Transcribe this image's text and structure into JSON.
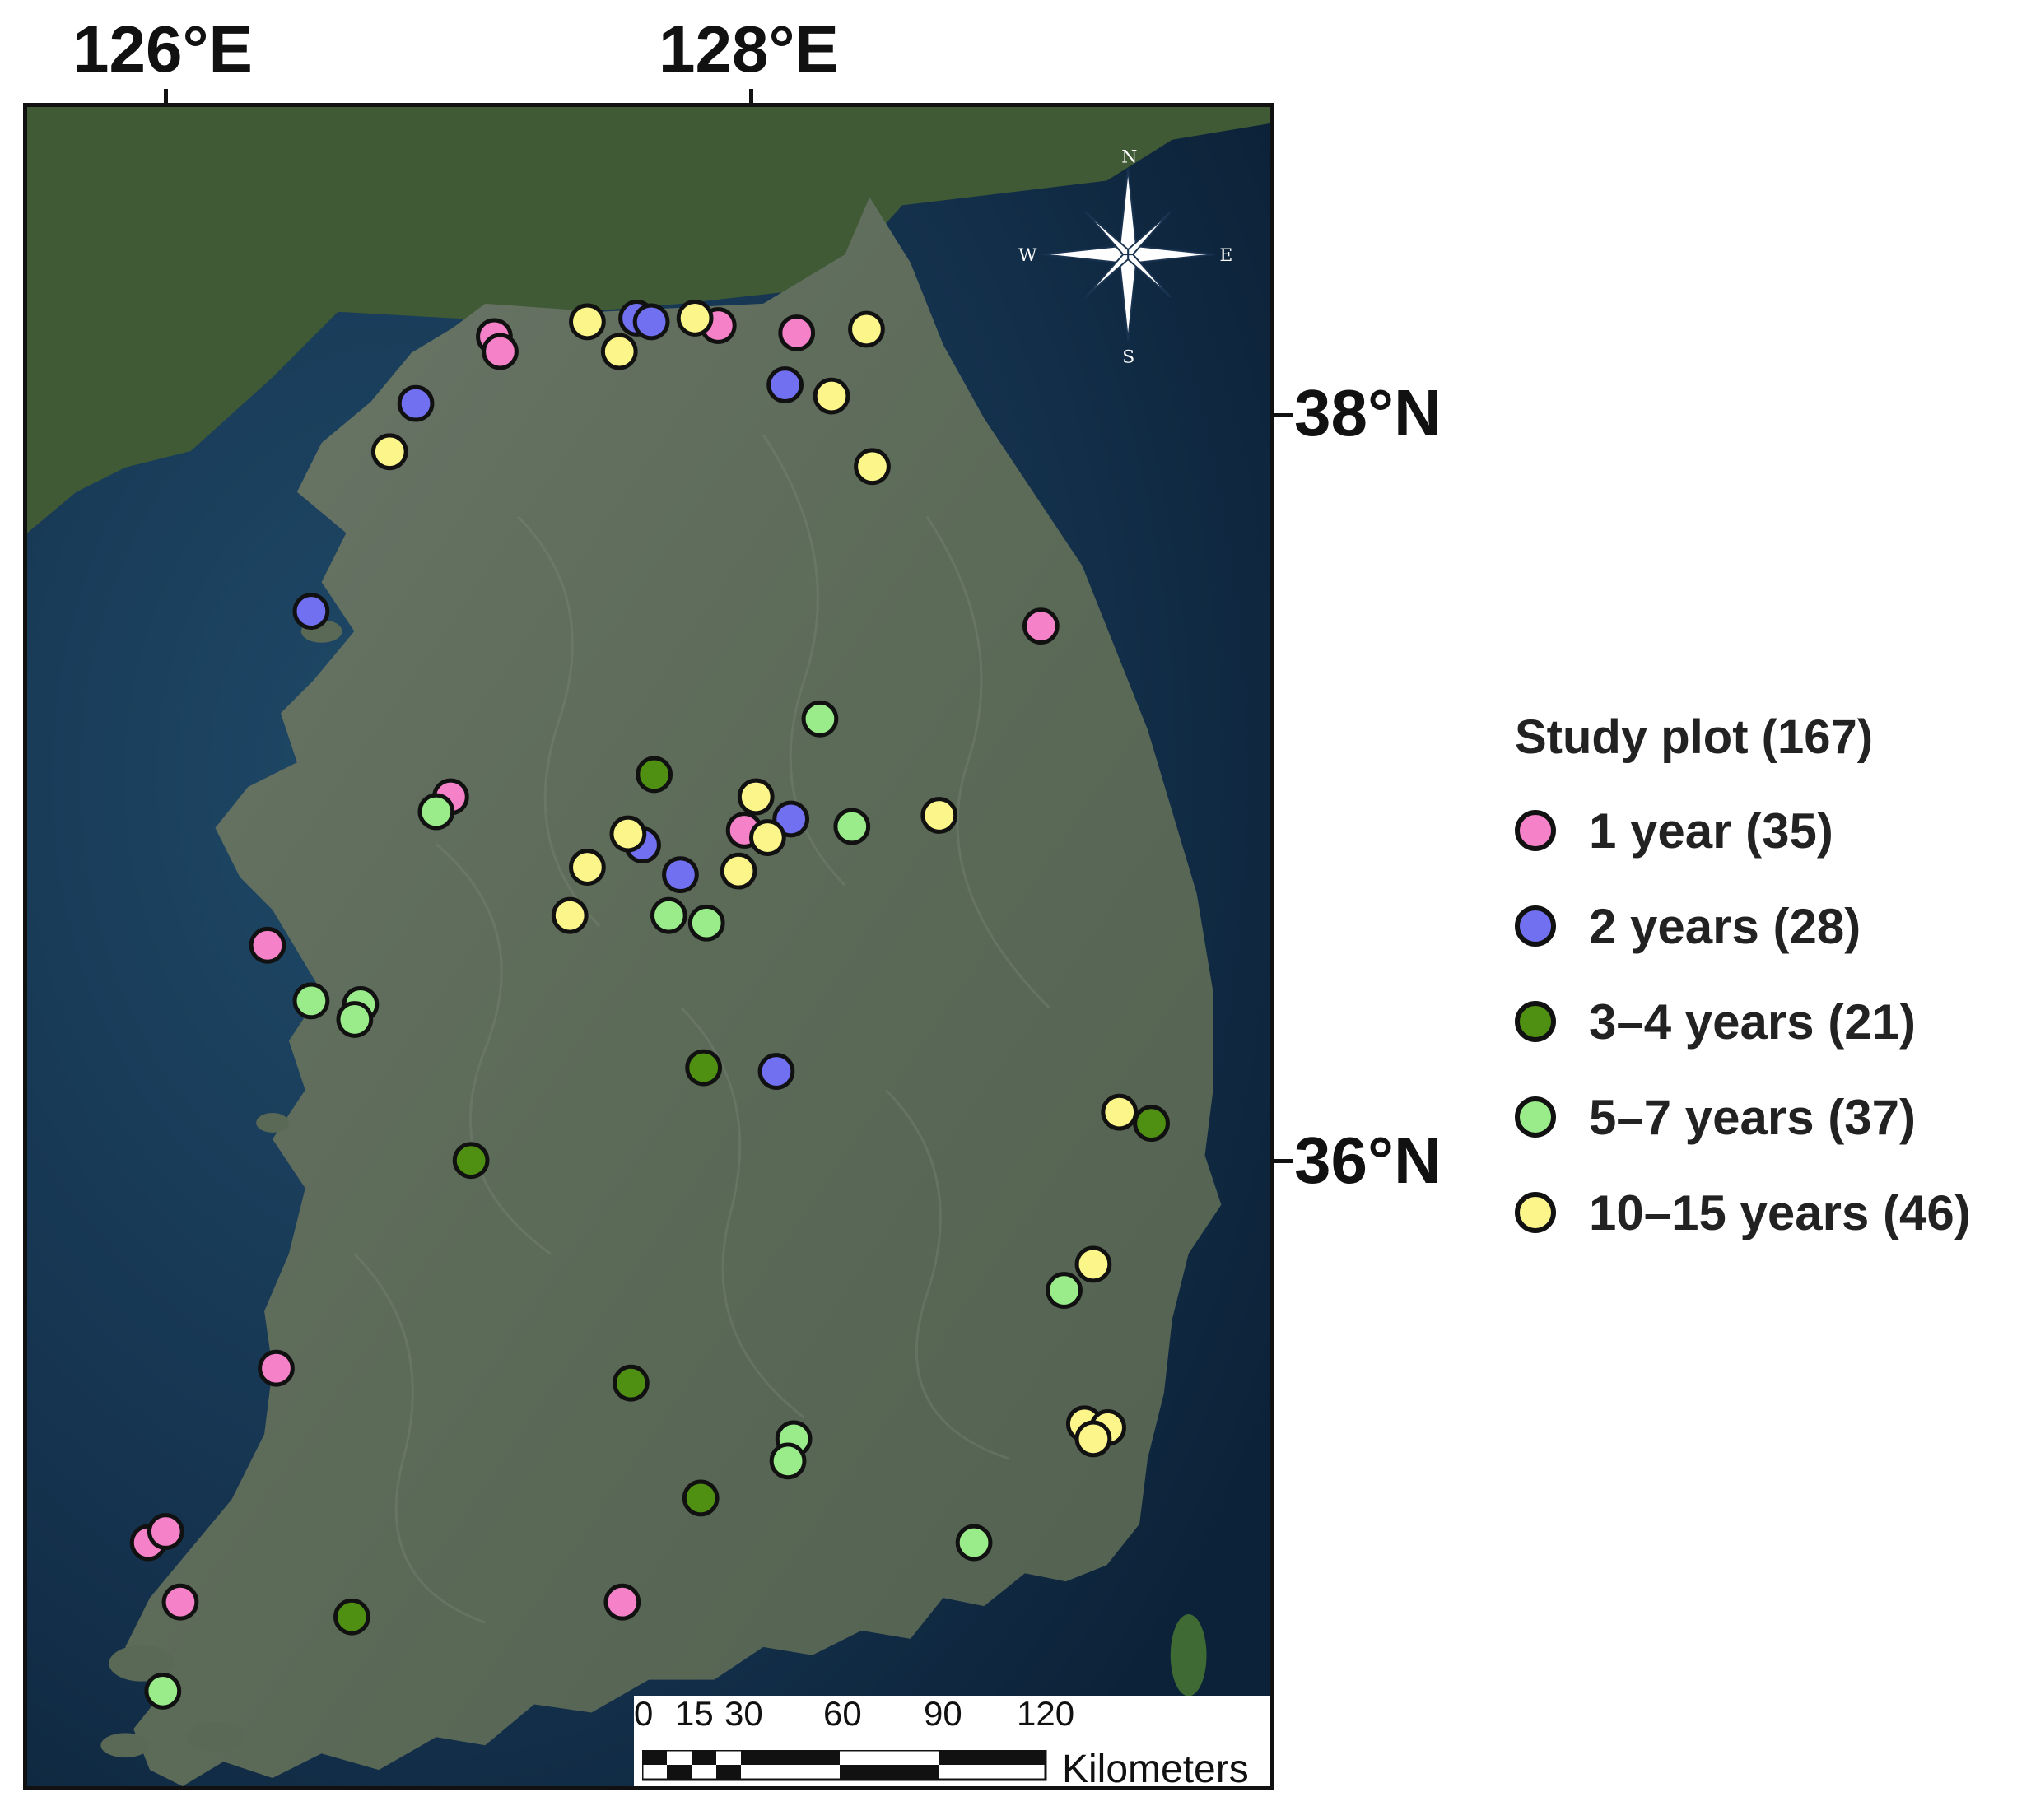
{
  "map": {
    "longitude_labels": [
      "126°E",
      "128°E"
    ],
    "latitude_labels": [
      "38°N",
      "36°N"
    ],
    "compass": {
      "n": "N",
      "s": "S",
      "e": "E",
      "w": "W"
    },
    "colors": {
      "sea": "#0f2a45",
      "land": "#5d6b5a",
      "forest_north": "#3e5a33"
    }
  },
  "legend": {
    "title": "Study plot (167)",
    "items": [
      {
        "label": "1 year (35)",
        "color": "#f582c8"
      },
      {
        "label": "2 years (28)",
        "color": "#7070f0"
      },
      {
        "label": "3–4 years (21)",
        "color": "#4f8f12"
      },
      {
        "label": "5–7 years (37)",
        "color": "#9aec8a"
      },
      {
        "label": "10–15 years (46)",
        "color": "#fbf58a"
      }
    ]
  },
  "scale_bar": {
    "ticks": [
      "0",
      "15",
      "30",
      "60",
      "90",
      "120"
    ],
    "unit": "Kilometers"
  },
  "plots": [
    {
      "c": 0,
      "lon": 127.12,
      "lat": 38.22
    },
    {
      "c": 0,
      "lon": 127.14,
      "lat": 38.18
    },
    {
      "c": 0,
      "lon": 127.89,
      "lat": 38.25
    },
    {
      "c": 0,
      "lon": 128.16,
      "lat": 38.23
    },
    {
      "c": 0,
      "lon": 129.0,
      "lat": 37.44
    },
    {
      "c": 0,
      "lon": 126.97,
      "lat": 36.98
    },
    {
      "c": 0,
      "lon": 127.98,
      "lat": 36.89
    },
    {
      "c": 0,
      "lon": 126.34,
      "lat": 36.58
    },
    {
      "c": 0,
      "lon": 126.37,
      "lat": 35.44
    },
    {
      "c": 0,
      "lon": 125.93,
      "lat": 34.97
    },
    {
      "c": 0,
      "lon": 125.99,
      "lat": 35.0
    },
    {
      "c": 0,
      "lon": 126.04,
      "lat": 34.81
    },
    {
      "c": 0,
      "lon": 127.56,
      "lat": 34.81
    },
    {
      "c": 1,
      "lon": 127.61,
      "lat": 38.27
    },
    {
      "c": 1,
      "lon": 127.66,
      "lat": 38.26
    },
    {
      "c": 1,
      "lon": 128.12,
      "lat": 38.09
    },
    {
      "c": 1,
      "lon": 126.85,
      "lat": 38.04
    },
    {
      "c": 1,
      "lon": 126.49,
      "lat": 37.48
    },
    {
      "c": 1,
      "lon": 128.14,
      "lat": 36.92
    },
    {
      "c": 1,
      "lon": 127.63,
      "lat": 36.85
    },
    {
      "c": 1,
      "lon": 127.76,
      "lat": 36.77
    },
    {
      "c": 1,
      "lon": 128.09,
      "lat": 36.24
    },
    {
      "c": 2,
      "lon": 127.67,
      "lat": 37.04
    },
    {
      "c": 2,
      "lon": 127.84,
      "lat": 36.25
    },
    {
      "c": 2,
      "lon": 129.38,
      "lat": 36.1
    },
    {
      "c": 2,
      "lon": 127.04,
      "lat": 36.0
    },
    {
      "c": 2,
      "lon": 127.59,
      "lat": 35.4
    },
    {
      "c": 2,
      "lon": 127.83,
      "lat": 35.09
    },
    {
      "c": 2,
      "lon": 126.63,
      "lat": 34.77
    },
    {
      "c": 3,
      "lon": 128.24,
      "lat": 37.19
    },
    {
      "c": 3,
      "lon": 126.92,
      "lat": 36.94
    },
    {
      "c": 3,
      "lon": 128.35,
      "lat": 36.9
    },
    {
      "c": 3,
      "lon": 127.72,
      "lat": 36.66
    },
    {
      "c": 3,
      "lon": 127.85,
      "lat": 36.64
    },
    {
      "c": 3,
      "lon": 126.49,
      "lat": 36.43
    },
    {
      "c": 3,
      "lon": 126.66,
      "lat": 36.42
    },
    {
      "c": 3,
      "lon": 126.64,
      "lat": 36.38
    },
    {
      "c": 3,
      "lon": 129.08,
      "lat": 35.65
    },
    {
      "c": 3,
      "lon": 128.15,
      "lat": 35.25
    },
    {
      "c": 3,
      "lon": 128.13,
      "lat": 35.19
    },
    {
      "c": 3,
      "lon": 128.77,
      "lat": 34.97
    },
    {
      "c": 3,
      "lon": 125.98,
      "lat": 34.57
    },
    {
      "c": 4,
      "lon": 127.44,
      "lat": 38.26
    },
    {
      "c": 4,
      "lon": 127.55,
      "lat": 38.18
    },
    {
      "c": 4,
      "lon": 127.81,
      "lat": 38.27
    },
    {
      "c": 4,
      "lon": 128.4,
      "lat": 38.24
    },
    {
      "c": 4,
      "lon": 128.28,
      "lat": 38.06
    },
    {
      "c": 4,
      "lon": 126.76,
      "lat": 37.91
    },
    {
      "c": 4,
      "lon": 128.42,
      "lat": 37.87
    },
    {
      "c": 4,
      "lon": 128.02,
      "lat": 36.98
    },
    {
      "c": 4,
      "lon": 128.65,
      "lat": 36.93
    },
    {
      "c": 4,
      "lon": 127.58,
      "lat": 36.88
    },
    {
      "c": 4,
      "lon": 128.06,
      "lat": 36.87
    },
    {
      "c": 4,
      "lon": 127.44,
      "lat": 36.79
    },
    {
      "c": 4,
      "lon": 127.96,
      "lat": 36.78
    },
    {
      "c": 4,
      "lon": 127.38,
      "lat": 36.66
    },
    {
      "c": 4,
      "lon": 129.27,
      "lat": 36.13
    },
    {
      "c": 4,
      "lon": 129.18,
      "lat": 35.72
    },
    {
      "c": 4,
      "lon": 129.15,
      "lat": 35.29
    },
    {
      "c": 4,
      "lon": 129.23,
      "lat": 35.28
    },
    {
      "c": 4,
      "lon": 129.18,
      "lat": 35.25
    }
  ]
}
